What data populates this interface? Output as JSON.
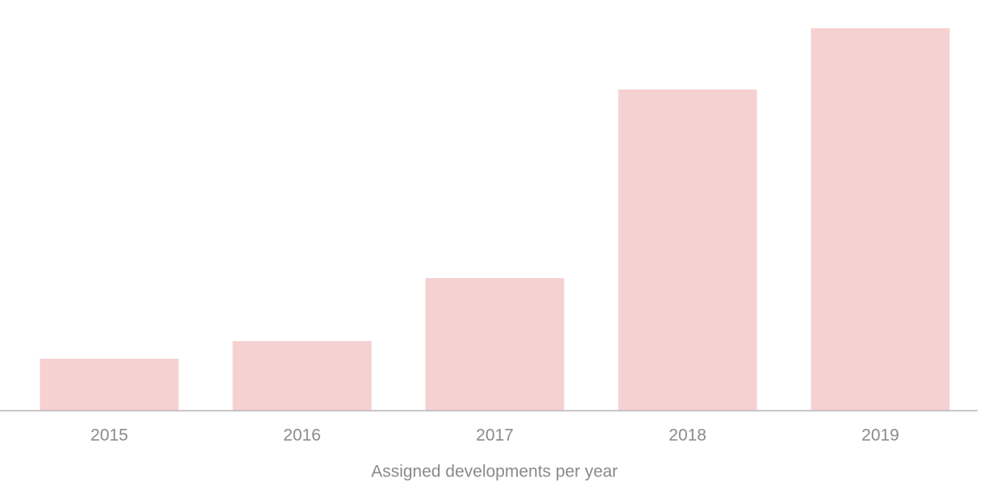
{
  "chart_data": {
    "type": "bar",
    "x_label": "Assigned developments per year",
    "categories": [
      "2015",
      "2016",
      "2017",
      "2018",
      "2019"
    ],
    "values": [
      64,
      86,
      164,
      398,
      474
    ],
    "color": "#f6d1d2",
    "ylim": [
      0,
      480
    ]
  }
}
